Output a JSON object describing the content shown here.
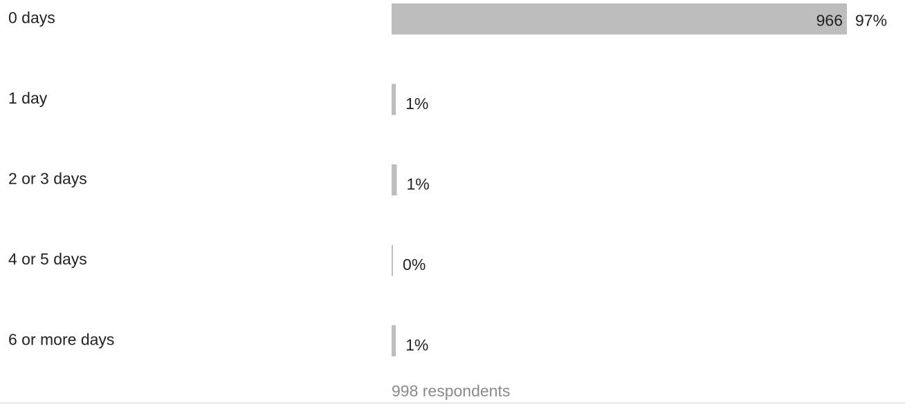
{
  "chart_data": {
    "type": "hbar",
    "categories": [
      "0 days",
      "1 day",
      "2 or 3 days",
      "4 or 5 days",
      "6 or more days"
    ],
    "values": [
      966,
      9,
      11,
      3,
      9
    ],
    "percent_labels": [
      "97%",
      "1%",
      "1%",
      "0%",
      "1%"
    ],
    "color": "#bdbdbd",
    "footer": "998 respondents"
  }
}
